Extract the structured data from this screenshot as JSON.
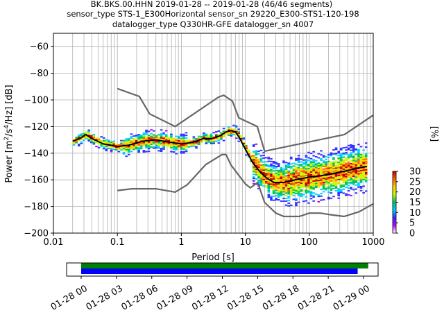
{
  "title": {
    "line1": "BK.BKS.00.HHN   2019-01-28 -- 2019-01-28  (46/46 segments)",
    "line2": "sensor_type STS-1_E300Horizontal sensor_sn 29220_E300-STS1-120-198",
    "line3": "datalogger_type Q330HR-GFE datalogger_sn 4007"
  },
  "chart_data": [
    {
      "type": "heatmap",
      "xlabel": "Period [s]",
      "ylabel": "Power [m²/s⁴/Hz] [dB]",
      "xscale": "log",
      "xlim": [
        0.01,
        1000
      ],
      "ylim": [
        -200,
        -50
      ],
      "x_ticks": [
        0.01,
        0.1,
        1,
        10,
        100,
        1000
      ],
      "x_tick_labels": [
        "0.01",
        "0.1",
        "1",
        "10",
        "100",
        "1000"
      ],
      "y_ticks": [
        -200,
        -180,
        -160,
        -140,
        -120,
        -100,
        -80,
        -60
      ],
      "y_tick_labels": [
        "−200",
        "−180",
        "−160",
        "−140",
        "−120",
        "−100",
        "−80",
        "−60"
      ],
      "grid": true,
      "colorbar": {
        "label": "[%]",
        "range": [
          0,
          30
        ],
        "ticks": [
          "0",
          "5",
          "10",
          "15",
          "20",
          "25",
          "30"
        ],
        "colormap": [
          "#ffffff",
          "#c000ff",
          "#3030ff",
          "#00d0ff",
          "#00c060",
          "#c0ff00",
          "#ffd000",
          "#ff6000",
          "#c00000"
        ]
      },
      "series": [
        {
          "name": "mean",
          "color": "#000000",
          "points": [
            [
              0.02,
              -131
            ],
            [
              0.026,
              -129
            ],
            [
              0.032,
              -126
            ],
            [
              0.04,
              -129
            ],
            [
              0.06,
              -133
            ],
            [
              0.1,
              -135
            ],
            [
              0.15,
              -134
            ],
            [
              0.25,
              -131
            ],
            [
              0.4,
              -130
            ],
            [
              0.7,
              -132
            ],
            [
              1.0,
              -133
            ],
            [
              1.5,
              -132
            ],
            [
              2.2,
              -129
            ],
            [
              3.0,
              -129
            ],
            [
              4.0,
              -127
            ],
            [
              5.0,
              -124
            ],
            [
              6.0,
              -123
            ],
            [
              7.0,
              -124
            ],
            [
              8.0,
              -128
            ],
            [
              10,
              -137
            ],
            [
              13,
              -147
            ],
            [
              17,
              -154
            ],
            [
              22,
              -159
            ],
            [
              28,
              -162
            ],
            [
              40,
              -162
            ],
            [
              60,
              -160
            ],
            [
              100,
              -158
            ],
            [
              150,
              -157
            ],
            [
              250,
              -155
            ],
            [
              400,
              -153
            ],
            [
              600,
              -151
            ],
            [
              800,
              -150
            ]
          ]
        },
        {
          "name": "high noise model",
          "color": "#666666",
          "points": [
            [
              0.1,
              -91.5
            ],
            [
              0.22,
              -97.4
            ],
            [
              0.32,
              -110.5
            ],
            [
              0.8,
              -120
            ],
            [
              3.8,
              -97.9
            ],
            [
              4.6,
              -96.5
            ],
            [
              6.3,
              -101
            ],
            [
              7.9,
              -113.5
            ],
            [
              15.4,
              -120
            ],
            [
              20,
              -138.5
            ],
            [
              354.8,
              -126
            ],
            [
              1000,
              -111.5
            ]
          ]
        },
        {
          "name": "low noise model",
          "color": "#666666",
          "points": [
            [
              0.1,
              -168
            ],
            [
              0.17,
              -166.7
            ],
            [
              0.4,
              -166.7
            ],
            [
              0.8,
              -169.2
            ],
            [
              1.24,
              -163.7
            ],
            [
              2.4,
              -148.6
            ],
            [
              4.3,
              -141.1
            ],
            [
              5.0,
              -141.1
            ],
            [
              6.0,
              -149
            ],
            [
              10,
              -163
            ],
            [
              12,
              -166
            ],
            [
              15.6,
              -162
            ],
            [
              20,
              -177
            ],
            [
              30,
              -185
            ],
            [
              40,
              -187.5
            ],
            [
              70,
              -187.5
            ],
            [
              100,
              -185
            ],
            [
              150,
              -185
            ],
            [
              200,
              -186
            ],
            [
              350,
              -187.5
            ],
            [
              600,
              -184
            ],
            [
              1000,
              -178
            ]
          ]
        }
      ]
    },
    {
      "type": "timeline",
      "x_tick_labels": [
        "01-28 00",
        "01-28 03",
        "01-28 06",
        "01-28 09",
        "01-28 12",
        "01-28 15",
        "01-28 18",
        "01-28 21",
        "01-29 00"
      ],
      "bars": [
        {
          "name": "data",
          "color": "#008000",
          "start_hour": 0.0,
          "end_hour": 24.4
        },
        {
          "name": "psd",
          "color": "#0000ff",
          "start_hour": 0.0,
          "end_hour": 23.5
        }
      ]
    }
  ]
}
